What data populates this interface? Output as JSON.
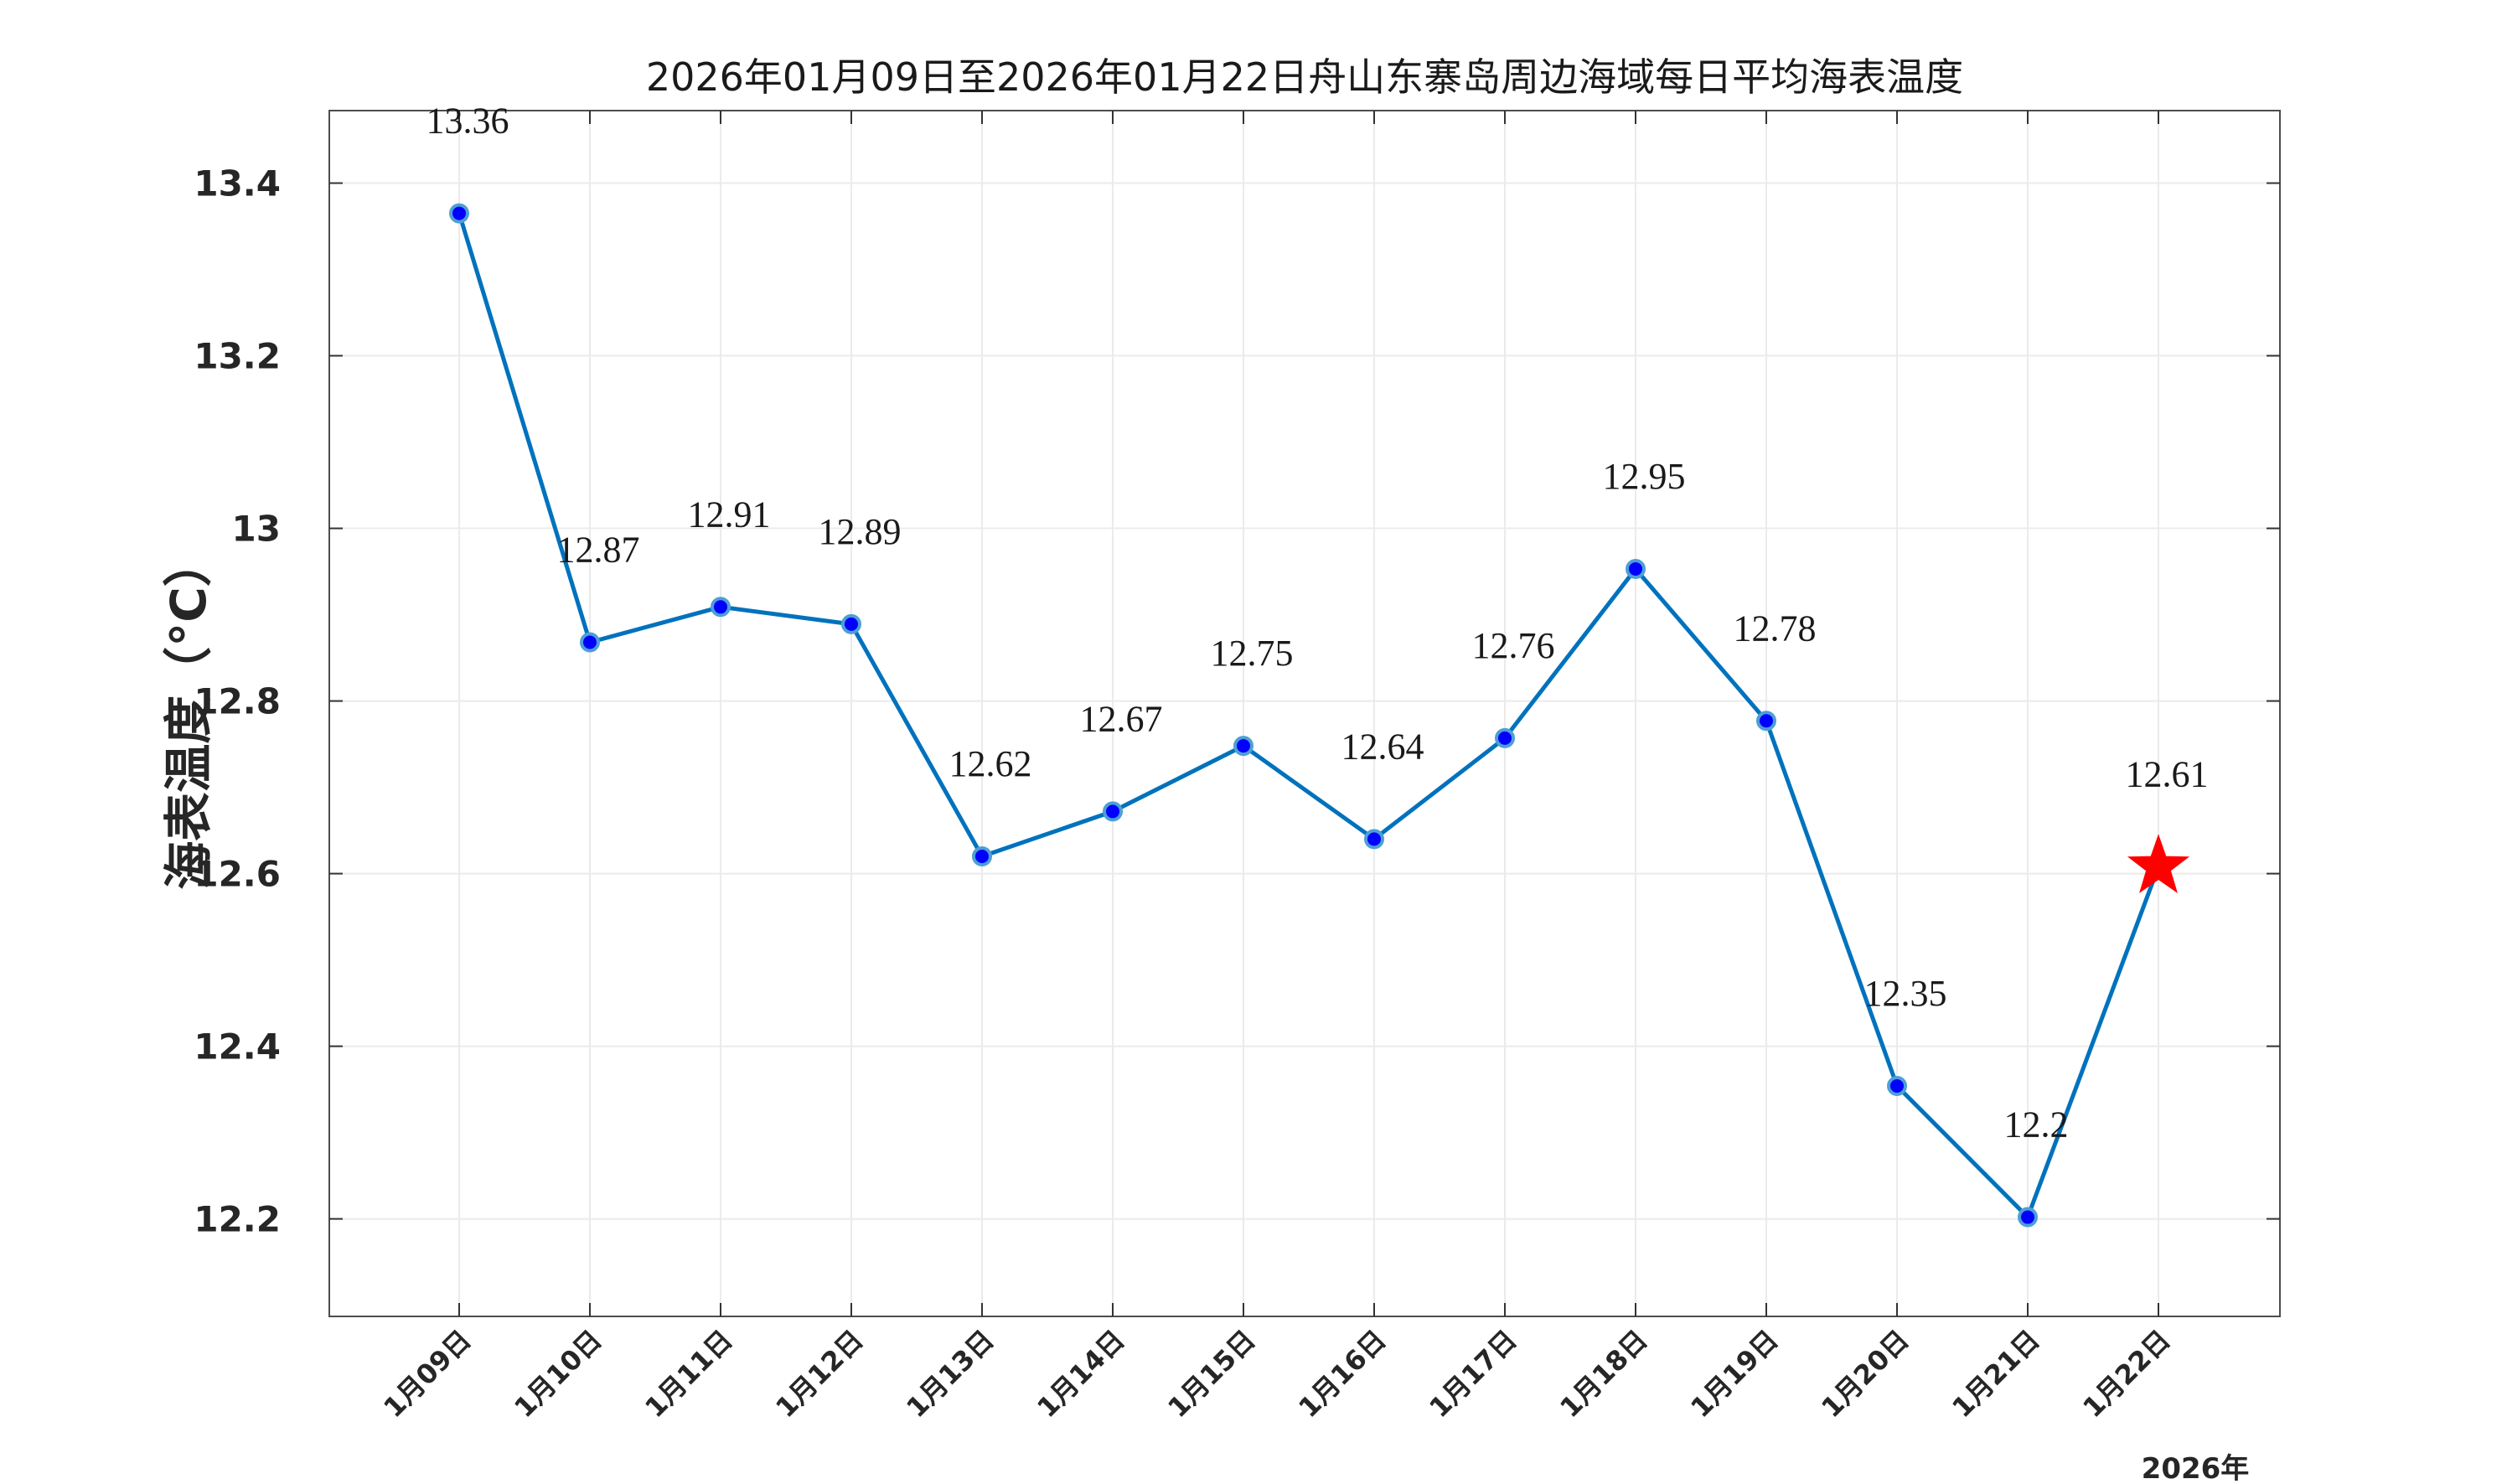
{
  "chart_data": {
    "type": "line",
    "title": "2026年01月09日至2026年01月22日舟山东寨岛周边海域每日平均海表温度",
    "xlabel": "",
    "ylabel": "海表温度（°C）",
    "x_year_label": "2026年",
    "categories": [
      "1月09日",
      "1月10日",
      "1月11日",
      "1月12日",
      "1月13日",
      "1月14日",
      "1月15日",
      "1月16日",
      "1月17日",
      "1月18日",
      "1月19日",
      "1月20日",
      "1月21日",
      "1月22日"
    ],
    "values": [
      13.365,
      12.868,
      12.909,
      12.889,
      12.62,
      12.672,
      12.748,
      12.64,
      12.757,
      12.953,
      12.777,
      12.354,
      12.202,
      12.608
    ],
    "data_labels": [
      "13.36",
      "12.87",
      "12.91",
      "12.89",
      "12.62",
      "12.67",
      "12.75",
      "12.64",
      "12.76",
      "12.95",
      "12.78",
      "12.35",
      "12.2",
      "12.61"
    ],
    "yticks": [
      12.2,
      12.4,
      12.6,
      12.8,
      13.0,
      13.2,
      13.4
    ],
    "ytick_labels": [
      "12.2",
      "12.4",
      "12.6",
      "12.8",
      "13",
      "13.2",
      "13.4"
    ],
    "ylim": [
      12.087,
      13.484
    ],
    "grid": true,
    "legend": "none",
    "colors": {
      "line": "#0072bd",
      "marker_fill": "#0000ff",
      "marker_edge": "#4d9fd6",
      "highlight": "#ff0000",
      "grid": "#ebebeb",
      "axis": "#333333"
    },
    "highlight_last_point": "star"
  }
}
